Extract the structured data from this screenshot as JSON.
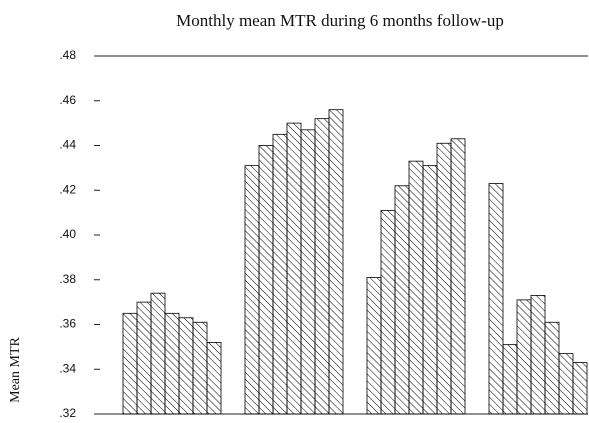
{
  "chart_data": {
    "type": "bar",
    "title": "Monthly mean MTR during 6 months follow-up",
    "y_label": "Mean MTR",
    "categories": [
      null,
      null,
      null,
      null,
      null,
      null,
      null,
      null,
      null,
      null,
      null,
      null,
      null,
      null,
      null,
      null,
      null,
      null,
      null,
      null,
      null,
      null,
      null,
      null,
      null,
      null,
      null,
      null
    ],
    "values": [
      0.365,
      0.37,
      0.374,
      0.365,
      0.363,
      0.361,
      0.352,
      0.431,
      0.44,
      0.445,
      0.45,
      0.447,
      0.452,
      0.456,
      0.381,
      0.411,
      0.422,
      0.433,
      0.431,
      0.441,
      0.443,
      0.423,
      0.351,
      0.371,
      0.373,
      0.361,
      0.347,
      0.343
    ],
    "color": "#000000",
    "ylim": [
      0.32,
      0.48
    ],
    "yticks": [
      {
        "value": 0.32,
        "label": ".32"
      },
      {
        "value": 0.34,
        "label": ".34"
      },
      {
        "value": 0.36,
        "label": ".36"
      },
      {
        "value": 0.38,
        "label": ".38"
      },
      {
        "value": 0.4,
        "label": ".40"
      },
      {
        "value": 0.42,
        "label": ".42"
      },
      {
        "value": 0.44,
        "label": ".44"
      },
      {
        "value": 0.46,
        "label": ".46"
      },
      {
        "value": 0.48,
        "label": ".48"
      }
    ],
    "grid": false
  }
}
